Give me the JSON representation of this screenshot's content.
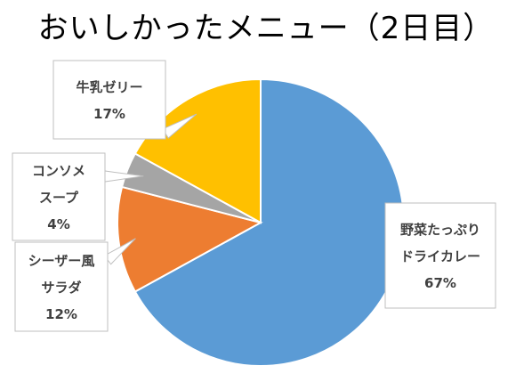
{
  "chart_data": {
    "type": "pie",
    "title": "おいしかったメニュー（2日目）",
    "slices": [
      {
        "label_lines": [
          "野菜たっぷり",
          "ドライカレー"
        ],
        "value": 67,
        "value_label": "67%",
        "color": "#5B9BD5"
      },
      {
        "label_lines": [
          "シーザー風",
          "サラダ"
        ],
        "value": 12,
        "value_label": "12%",
        "color": "#ED7D31"
      },
      {
        "label_lines": [
          "コンソメ",
          "スープ"
        ],
        "value": 4,
        "value_label": "4%",
        "color": "#A5A5A5"
      },
      {
        "label_lines": [
          "牛乳ゼリー"
        ],
        "value": 17,
        "value_label": "17%",
        "color": "#FFC000"
      }
    ],
    "legend": "none",
    "data_labels": "callouts"
  }
}
